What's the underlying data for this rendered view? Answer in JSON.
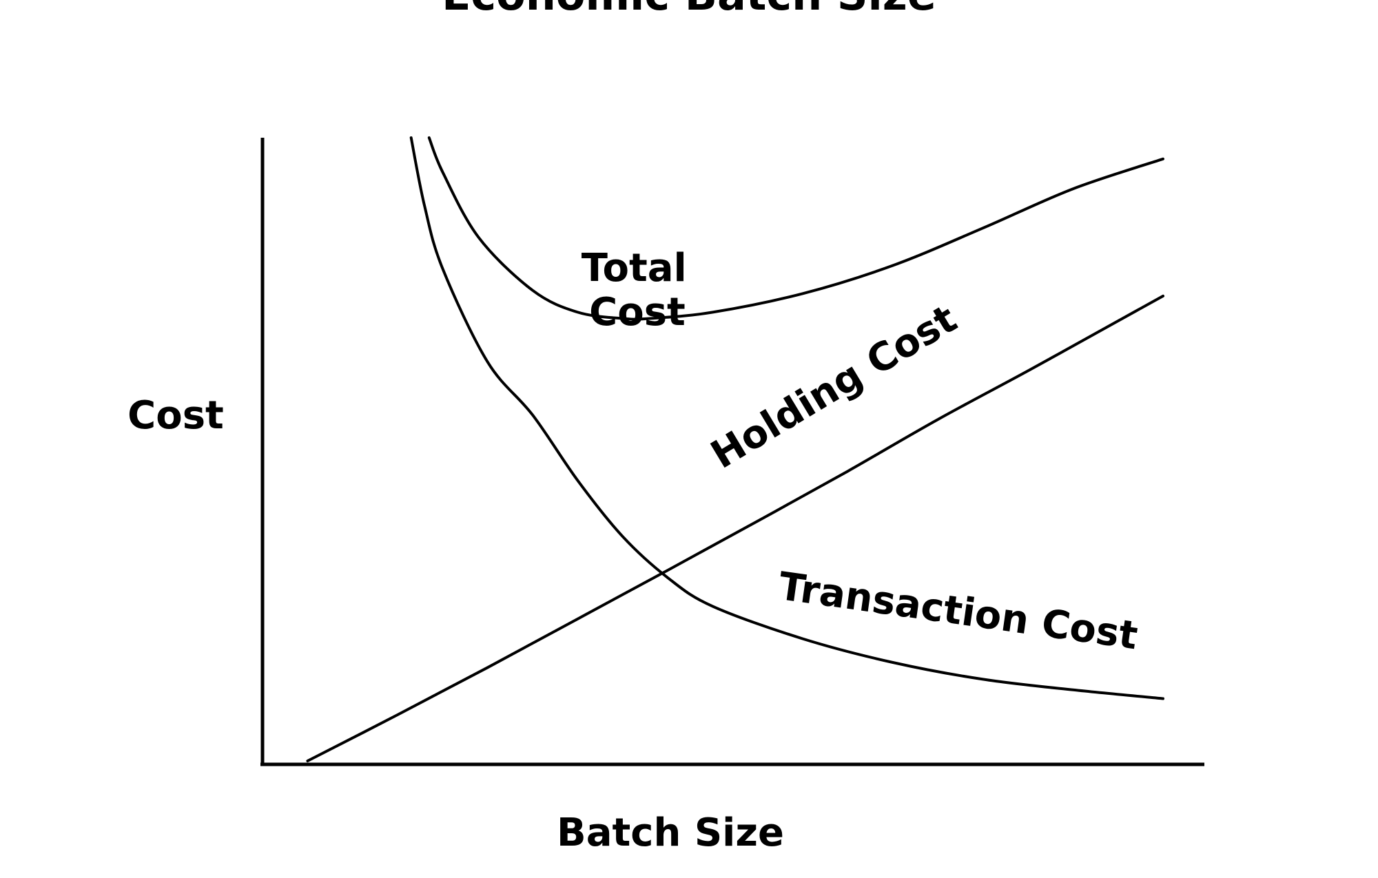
{
  "chart_data": {
    "type": "line",
    "title": "Economic Batch Size",
    "xlabel": "Batch Size",
    "ylabel": "Cost",
    "grid": false,
    "legend": "none",
    "series": [
      {
        "name": "Holding Cost",
        "x": [
          0.05,
          0.15,
          0.25,
          0.35,
          0.45,
          0.55,
          0.65,
          0.75,
          0.85,
          0.95,
          1.0
        ],
        "y": [
          0.0,
          0.074,
          0.15,
          0.228,
          0.306,
          0.385,
          0.465,
          0.548,
          0.626,
          0.706,
          0.746
        ]
      },
      {
        "name": "Transaction Cost",
        "x": [
          0.165,
          0.18,
          0.2,
          0.25,
          0.3,
          0.35,
          0.4,
          0.45,
          0.5,
          0.6,
          0.7,
          0.8,
          0.9,
          1.0
        ],
        "y": [
          1.0,
          0.89,
          0.79,
          0.64,
          0.555,
          0.45,
          0.36,
          0.294,
          0.248,
          0.196,
          0.158,
          0.131,
          0.114,
          0.1
        ]
      },
      {
        "name": "Total Cost",
        "x": [
          0.185,
          0.2,
          0.24,
          0.3,
          0.35,
          0.4,
          0.43,
          0.5,
          0.6,
          0.7,
          0.8,
          0.9,
          1.0
        ],
        "y": [
          1.0,
          0.945,
          0.84,
          0.755,
          0.72,
          0.71,
          0.71,
          0.72,
          0.75,
          0.795,
          0.855,
          0.918,
          0.966
        ]
      }
    ],
    "annotations": [
      {
        "text": "Total Cost",
        "series": "Total Cost"
      },
      {
        "text": "Holding Cost",
        "series": "Holding Cost"
      },
      {
        "text": "Transaction Cost",
        "series": "Transaction Cost"
      }
    ]
  }
}
